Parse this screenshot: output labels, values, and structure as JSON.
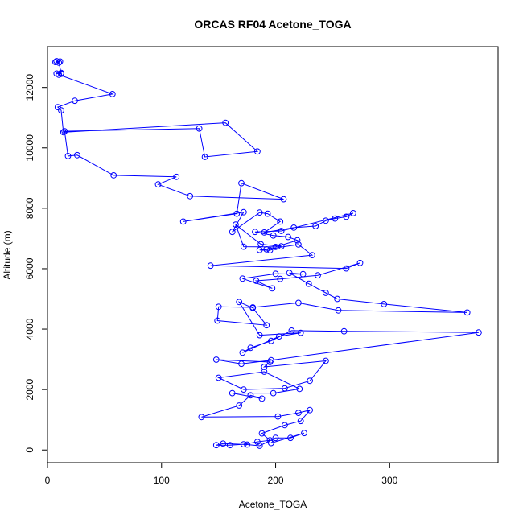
{
  "chart_data": {
    "type": "line",
    "title": "ORCAS RF04 Acetone_TOGA",
    "xlabel": "Acetone_TOGA",
    "ylabel": "Altitude (m)",
    "xlim": [
      0,
      395
    ],
    "ylim": [
      -420,
      13350
    ],
    "xticks": [
      0,
      100,
      200,
      300
    ],
    "yticks": [
      0,
      2000,
      4000,
      6000,
      8000,
      10000,
      12000
    ],
    "grid": false,
    "legend": "none",
    "series_color": "#0000ff",
    "markers": "open-circle",
    "x": [
      8,
      11,
      7,
      10,
      12,
      8,
      12,
      10,
      57,
      24,
      9,
      12,
      14,
      156,
      184,
      138,
      133,
      15,
      18,
      26,
      58,
      113,
      97,
      125,
      207,
      170,
      166,
      119,
      172,
      162,
      186,
      193,
      204,
      190,
      216,
      235,
      244,
      252,
      262,
      268,
      205,
      182,
      198,
      211,
      219,
      200,
      172,
      165,
      187,
      205,
      195,
      186,
      192,
      220,
      232,
      143,
      262,
      274,
      237,
      204,
      183,
      197,
      171,
      200,
      224,
      212,
      229,
      244,
      254,
      295,
      368,
      255,
      220,
      180,
      150,
      149,
      192,
      180,
      168,
      186,
      222,
      203,
      171,
      178,
      196,
      214,
      260,
      378,
      196,
      170,
      148,
      195,
      190,
      244,
      230,
      208,
      172,
      150,
      190,
      221,
      198,
      162,
      188,
      178,
      168,
      135,
      202,
      220,
      230,
      222,
      208,
      188,
      195,
      184,
      172,
      160,
      148,
      154,
      175,
      186,
      200,
      213,
      225,
      196
    ],
    "y": [
      12870,
      12860,
      12840,
      12820,
      12480,
      12460,
      12450,
      12420,
      11780,
      11560,
      11350,
      11240,
      10520,
      10830,
      9880,
      9700,
      10640,
      10550,
      9730,
      9760,
      9090,
      9040,
      8790,
      8400,
      8300,
      8830,
      7820,
      7560,
      7870,
      7220,
      7860,
      7820,
      7560,
      7200,
      7360,
      7410,
      7590,
      7660,
      7720,
      7840,
      7250,
      7220,
      7100,
      7050,
      6940,
      6720,
      6730,
      7460,
      6810,
      6740,
      6610,
      6620,
      6640,
      6800,
      6450,
      6100,
      6010,
      6190,
      5780,
      5660,
      5600,
      5350,
      5670,
      5830,
      5820,
      5860,
      5500,
      5200,
      5000,
      4830,
      4550,
      4620,
      4870,
      4720,
      4740,
      4280,
      4130,
      4700,
      4900,
      3800,
      3880,
      3760,
      3220,
      3380,
      3610,
      3950,
      3930,
      3890,
      2970,
      2850,
      2990,
      2910,
      2750,
      2950,
      2290,
      2040,
      2000,
      2390,
      2590,
      2020,
      1880,
      1880,
      1700,
      1810,
      1470,
      1090,
      1110,
      1230,
      1320,
      960,
      820,
      550,
      320,
      270,
      190,
      160,
      160,
      210,
      180,
      140,
      400,
      400,
      560,
      230
    ]
  }
}
